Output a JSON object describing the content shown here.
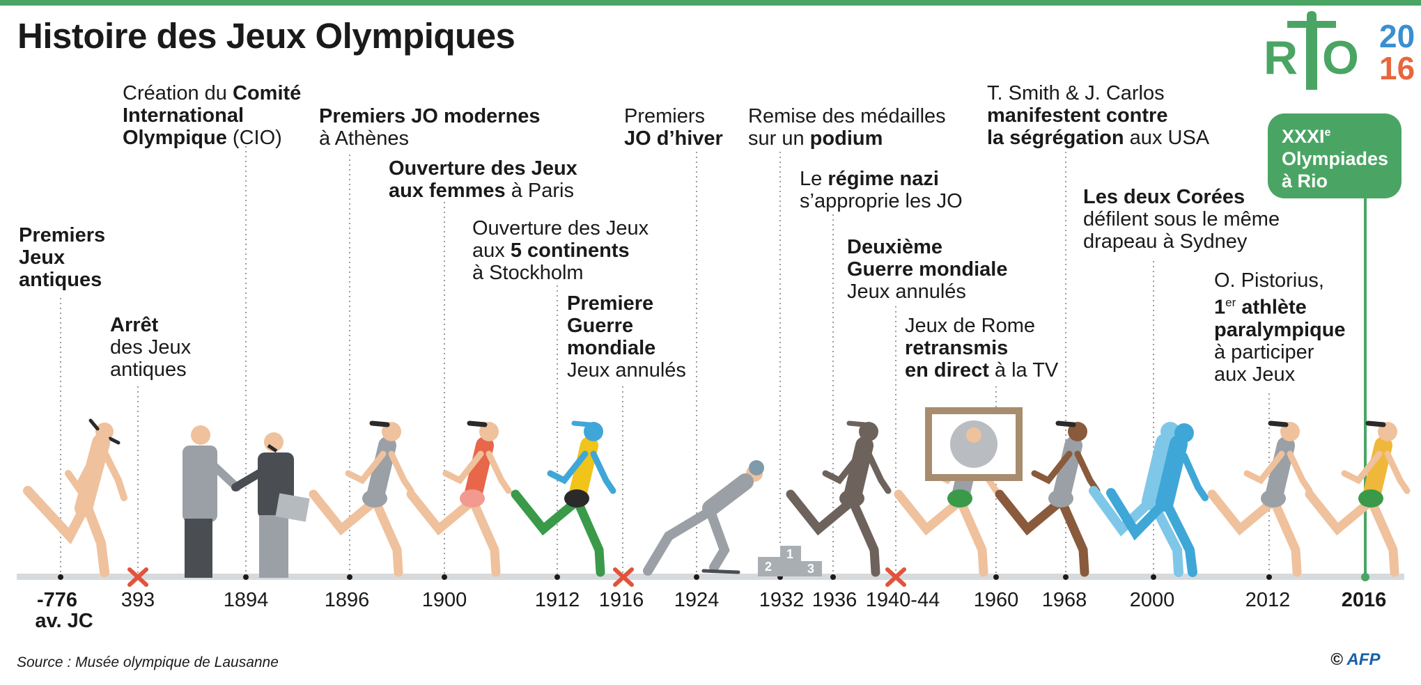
{
  "title": "Histoire des Jeux Olympiques",
  "logo": {
    "word": "RIO",
    "year_top": "20",
    "year_bottom": "16"
  },
  "highlight": {
    "line1": "XXXI",
    "sup": "e",
    "line2": "Olympiades",
    "line3": "à Rio"
  },
  "events": [
    {
      "id": "e776",
      "parts": [
        [
          "b",
          "Premiers"
        ],
        [
          "br"
        ],
        [
          "b",
          "Jeux"
        ],
        [
          "br"
        ],
        [
          "b",
          "antiques"
        ]
      ]
    },
    {
      "id": "e393",
      "parts": [
        [
          "b",
          "Arrêt"
        ],
        [
          "br"
        ],
        [
          "t",
          "des Jeux"
        ],
        [
          "br"
        ],
        [
          "t",
          "antiques"
        ]
      ]
    },
    {
      "id": "e1894",
      "parts": [
        [
          "t",
          "Création du "
        ],
        [
          "b",
          "Comité"
        ],
        [
          "br"
        ],
        [
          "b",
          "International"
        ],
        [
          "br"
        ],
        [
          "b",
          "Olympique"
        ],
        [
          "t",
          " (CIO)"
        ]
      ]
    },
    {
      "id": "e1896",
      "parts": [
        [
          "b",
          "Premiers JO modernes"
        ],
        [
          "br"
        ],
        [
          "t",
          "à Athènes"
        ]
      ]
    },
    {
      "id": "e1900",
      "parts": [
        [
          "b",
          "Ouverture des Jeux"
        ],
        [
          "br"
        ],
        [
          "b",
          "aux femmes"
        ],
        [
          "t",
          " à Paris"
        ]
      ]
    },
    {
      "id": "e1912",
      "parts": [
        [
          "t",
          "Ouverture des Jeux"
        ],
        [
          "br"
        ],
        [
          "t",
          "aux "
        ],
        [
          "b",
          "5 continents"
        ],
        [
          "br"
        ],
        [
          "t",
          "à Stockholm"
        ]
      ]
    },
    {
      "id": "e1916",
      "parts": [
        [
          "b",
          "Premiere"
        ],
        [
          "br"
        ],
        [
          "b",
          "Guerre"
        ],
        [
          "br"
        ],
        [
          "b",
          "mondiale"
        ],
        [
          "br"
        ],
        [
          "t",
          "Jeux annulés"
        ]
      ]
    },
    {
      "id": "e1924",
      "parts": [
        [
          "t",
          "Premiers"
        ],
        [
          "br"
        ],
        [
          "b",
          "JO d’hiver"
        ]
      ]
    },
    {
      "id": "e1932",
      "parts": [
        [
          "t",
          "Remise des médailles"
        ],
        [
          "br"
        ],
        [
          "t",
          "sur un "
        ],
        [
          "b",
          "podium"
        ]
      ]
    },
    {
      "id": "e1936",
      "parts": [
        [
          "t",
          "Le "
        ],
        [
          "b",
          "régime nazi"
        ],
        [
          "br"
        ],
        [
          "t",
          "s’approprie les JO"
        ]
      ]
    },
    {
      "id": "e1940",
      "parts": [
        [
          "b",
          "Deuxième"
        ],
        [
          "br"
        ],
        [
          "b",
          "Guerre mondiale"
        ],
        [
          "br"
        ],
        [
          "t",
          "Jeux annulés"
        ]
      ]
    },
    {
      "id": "e1960",
      "parts": [
        [
          "t",
          "Jeux de Rome"
        ],
        [
          "br"
        ],
        [
          "b",
          "retransmis"
        ],
        [
          "br"
        ],
        [
          "b",
          "en direct"
        ],
        [
          "t",
          " à la TV"
        ]
      ]
    },
    {
      "id": "e1968",
      "parts": [
        [
          "t",
          "T. Smith & J. Carlos"
        ],
        [
          "br"
        ],
        [
          "b",
          "manifestent contre"
        ],
        [
          "br"
        ],
        [
          "b",
          "la ségrégation"
        ],
        [
          "t",
          " aux USA"
        ]
      ]
    },
    {
      "id": "e2000",
      "parts": [
        [
          "b",
          "Les deux Corées"
        ],
        [
          "br"
        ],
        [
          "t",
          "défilent sous le même"
        ],
        [
          "br"
        ],
        [
          "t",
          "drapeau à Sydney"
        ]
      ]
    },
    {
      "id": "e2012",
      "parts": [
        [
          "t",
          "O. Pistorius,"
        ],
        [
          "br"
        ],
        [
          "b",
          "1"
        ],
        [
          "sup",
          "er"
        ],
        [
          "b",
          " athlète"
        ],
        [
          "br"
        ],
        [
          "b",
          "paralympique"
        ],
        [
          "br"
        ],
        [
          "t",
          "à participer"
        ],
        [
          "br"
        ],
        [
          "t",
          "aux Jeux"
        ]
      ]
    }
  ],
  "years": {
    "y776a": "-776",
    "y776b": "av. JC",
    "y393": "393",
    "y1894": "1894",
    "y1896": "1896",
    "y1900": "1900",
    "y1912": "1912",
    "y1916": "1916",
    "y1924": "1924",
    "y1932": "1932",
    "y1936": "1936",
    "y1940": "1940-44",
    "y1960": "1960",
    "y1968": "1968",
    "y2000": "2000",
    "y2012": "2012",
    "y2016": "2016"
  },
  "podium": [
    "2",
    "1",
    "3"
  ],
  "source": "Source : Musée olympique de Lausanne",
  "credit": {
    "symbol": "©",
    "agency": "AFP"
  },
  "colors": {
    "green": "#4aa564",
    "cancel": "#e2533d",
    "skin": "#f0c8a0",
    "nude": "#efc19c",
    "grey": "#9aa0a6",
    "dark": "#2a2a2a"
  }
}
